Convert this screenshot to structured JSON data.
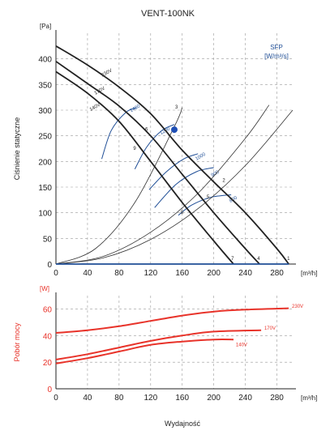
{
  "title": "VENT-100NK",
  "x_unit": "[m³/h]",
  "x_label": "Wydajność",
  "colors": {
    "black": "#222222",
    "blue": "#1f4e96",
    "red": "#e8332a",
    "grid": "#9a9a9a",
    "dot": "#1f4fb5"
  },
  "chart_data": [
    {
      "type": "line",
      "title": "VENT-100NK",
      "ylabel": "Ciśnienie statyczne",
      "y_unit": "[Pa]",
      "xlim": [
        0,
        300
      ],
      "ylim": [
        0,
        450
      ],
      "x_ticks": [
        0,
        40,
        80,
        120,
        160,
        200,
        240,
        280
      ],
      "y_ticks": [
        0,
        50,
        100,
        150,
        200,
        250,
        300,
        350,
        400
      ],
      "grid": true,
      "series": [
        {
          "name": "230V",
          "color": "#222222",
          "x": [
            0,
            40,
            80,
            120,
            160,
            200,
            240,
            280,
            295
          ],
          "y": [
            425,
            388,
            345,
            293,
            222,
            160,
            100,
            30,
            0
          ]
        },
        {
          "name": "170V",
          "color": "#222222",
          "x": [
            0,
            40,
            80,
            120,
            160,
            200,
            240,
            258
          ],
          "y": [
            395,
            352,
            308,
            250,
            175,
            100,
            30,
            0
          ]
        },
        {
          "name": "140V",
          "color": "#222222",
          "x": [
            0,
            40,
            80,
            120,
            160,
            200,
            225
          ],
          "y": [
            375,
            333,
            278,
            200,
            120,
            45,
            0
          ]
        },
        {
          "name": "",
          "color": "#1f4e96",
          "x": [
            0,
            295
          ],
          "y": [
            0,
            0
          ]
        }
      ],
      "system_curves": [
        {
          "label": "1",
          "x": [
            0,
            60,
            120,
            180,
            240,
            300
          ],
          "y": [
            0,
            12,
            48,
            108,
            192,
            300
          ]
        },
        {
          "label": "2",
          "x": [
            0,
            60,
            120,
            180,
            240,
            270
          ],
          "y": [
            0,
            15,
            62,
            138,
            245,
            310
          ]
        },
        {
          "label": "3",
          "x": [
            0,
            50,
            100,
            150,
            160
          ],
          "y": [
            0,
            30,
            120,
            268,
            305
          ]
        }
      ],
      "system_curve_labels": [
        {
          "text": "1",
          "x": 293,
          "y": 8
        },
        {
          "text": "2",
          "x": 211,
          "y": 160
        },
        {
          "text": "3",
          "x": 151,
          "y": 303
        },
        {
          "text": "4",
          "x": 255,
          "y": 8
        },
        {
          "text": "5",
          "x": 191,
          "y": 128
        },
        {
          "text": "6",
          "x": 113,
          "y": 260
        },
        {
          "text": "7",
          "x": 222,
          "y": 8
        },
        {
          "text": "8",
          "x": 158,
          "y": 98
        },
        {
          "text": "9",
          "x": 98,
          "y": 223
        }
      ],
      "sfp_curves": [
        {
          "label": "1400",
          "x": [
            58,
            70,
            88,
            102
          ],
          "y": [
            205,
            260,
            295,
            305
          ]
        },
        {
          "label": "1200",
          "x": [
            100,
            115,
            134,
            150
          ],
          "y": [
            185,
            228,
            260,
            272
          ]
        },
        {
          "label": "1000",
          "x": [
            118,
            140,
            162,
            180
          ],
          "y": [
            145,
            180,
            205,
            215
          ]
        },
        {
          "label": "900",
          "x": [
            125,
            152,
            178,
            200
          ],
          "y": [
            110,
            155,
            180,
            188
          ]
        },
        {
          "label": "800",
          "x": [
            155,
            172,
            196,
            222
          ],
          "y": [
            95,
            115,
            130,
            135
          ]
        }
      ],
      "sfp_labels": [
        {
          "text": "1400",
          "x": 95,
          "y": 296
        },
        {
          "text": "1200",
          "x": 133,
          "y": 252
        },
        {
          "text": "1000",
          "x": 178,
          "y": 202
        },
        {
          "text": "900",
          "x": 198,
          "y": 170
        },
        {
          "text": "800",
          "x": 221,
          "y": 120
        }
      ],
      "curve_labels": [
        {
          "text": "230V",
          "x": 59,
          "y": 365
        },
        {
          "text": "170V",
          "x": 50,
          "y": 330
        },
        {
          "text": "140V",
          "x": 44,
          "y": 298
        }
      ],
      "operating_point": {
        "x": 150,
        "y": 262
      },
      "sfp_legend": {
        "line1": "SFP",
        "line2": "[W/m³/s]"
      }
    },
    {
      "type": "line",
      "ylabel": "Pobór mocy",
      "y_unit": "[W]",
      "xlim": [
        0,
        300
      ],
      "ylim": [
        0,
        70
      ],
      "x_ticks": [
        0,
        40,
        80,
        120,
        160,
        200,
        240,
        280
      ],
      "y_ticks": [
        0,
        20,
        40,
        60
      ],
      "grid": true,
      "series": [
        {
          "name": "230V",
          "color": "#e8332a",
          "x": [
            0,
            40,
            80,
            120,
            160,
            200,
            240,
            295
          ],
          "y": [
            42,
            44,
            47,
            51,
            55,
            58,
            59.5,
            60.5
          ]
        },
        {
          "name": "170V",
          "color": "#e8332a",
          "x": [
            0,
            40,
            80,
            120,
            160,
            200,
            260
          ],
          "y": [
            22,
            26,
            31,
            36,
            40,
            43,
            44
          ]
        },
        {
          "name": "140V",
          "color": "#e8332a",
          "x": [
            0,
            40,
            80,
            120,
            160,
            200,
            225
          ],
          "y": [
            19,
            23,
            28,
            33,
            35.5,
            37,
            37
          ]
        }
      ],
      "curve_labels": [
        {
          "text": "230V",
          "x": 299,
          "y": 61
        },
        {
          "text": "170V",
          "x": 264,
          "y": 44.5
        },
        {
          "text": "140V",
          "x": 228,
          "y": 32
        }
      ]
    }
  ]
}
